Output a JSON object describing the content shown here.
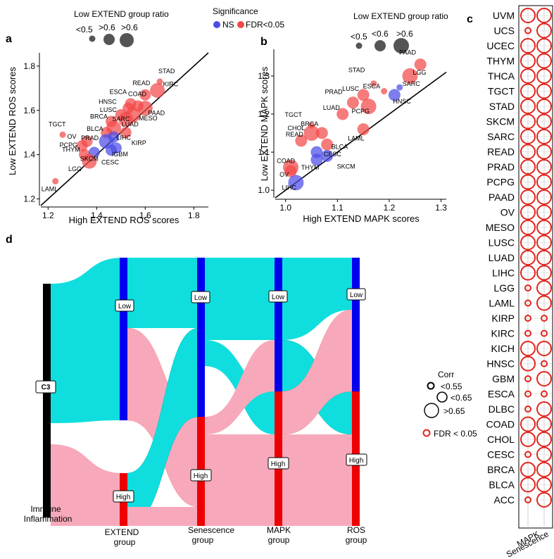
{
  "colors": {
    "red": "#f24848",
    "blue": "#4c4ce8",
    "teal": "#10dede",
    "pink": "#f7a9bb",
    "ring": "#e0241c"
  },
  "panel_labels": {
    "a": "a",
    "b": "b",
    "c": "c",
    "d": "d"
  },
  "legend_top": {
    "size_title": "Low EXTEND group ratio",
    "size_entries": [
      "<0.5",
      ">0.6",
      ">0.6"
    ],
    "sig_title": "Significance",
    "sig_ns": "NS",
    "sig_fdr": "FDR<0.05"
  },
  "legend_b": {
    "size_title": "Low EXTEND group ratio",
    "size_entries": [
      "<0.5",
      "<0.6",
      ">0.6"
    ]
  },
  "legend_c": {
    "corr_title": "Corr",
    "corr_entries": [
      "<0.55",
      "<0.65",
      ">0.65"
    ],
    "fdr_label": "FDR < 0.05"
  },
  "chart_data": [
    {
      "id": "a",
      "type": "scatter",
      "xlabel": "High EXTEND ROS scores",
      "ylabel": "Low EXTEND ROS scores",
      "xlim": [
        1.17,
        1.86
      ],
      "ylim": [
        1.17,
        1.86
      ],
      "xticks": [
        "1.2",
        "1.4",
        "1.6",
        "1.8"
      ],
      "yticks": [
        "1.2",
        "1.4",
        "1.6",
        "1.8"
      ],
      "diagonal": true,
      "points": [
        {
          "label": "STAD",
          "x": 1.66,
          "y": 1.73,
          "size": 1,
          "sig": "FDR"
        },
        {
          "label": "KIRC",
          "x": 1.65,
          "y": 1.69,
          "size": 3,
          "sig": "FDR"
        },
        {
          "label": "READ",
          "x": 1.6,
          "y": 1.67,
          "size": 2,
          "sig": "FDR"
        },
        {
          "label": "ESCA",
          "x": 1.54,
          "y": 1.63,
          "size": 2,
          "sig": "FDR"
        },
        {
          "label": "COAD",
          "x": 1.57,
          "y": 1.62,
          "size": 2,
          "sig": "FDR"
        },
        {
          "label": "HNSC",
          "x": 1.53,
          "y": 1.61,
          "size": 2,
          "sig": "FDR"
        },
        {
          "label": "PAAD",
          "x": 1.6,
          "y": 1.61,
          "size": 3,
          "sig": "FDR"
        },
        {
          "label": "LUSC",
          "x": 1.5,
          "y": 1.58,
          "size": 2,
          "sig": "FDR"
        },
        {
          "label": "MESO",
          "x": 1.55,
          "y": 1.58,
          "size": 3,
          "sig": "FDR"
        },
        {
          "label": "LUAD",
          "x": 1.52,
          "y": 1.56,
          "size": 3,
          "sig": "FDR"
        },
        {
          "label": "BRCA",
          "x": 1.46,
          "y": 1.55,
          "size": 2,
          "sig": "FDR"
        },
        {
          "label": "SARC",
          "x": 1.47,
          "y": 1.52,
          "size": 3,
          "sig": "FDR"
        },
        {
          "label": "BLCA",
          "x": 1.44,
          "y": 1.5,
          "size": 2,
          "sig": "FDR"
        },
        {
          "label": "KIRP",
          "x": 1.52,
          "y": 1.5,
          "size": 2,
          "sig": "FDR"
        },
        {
          "label": "LIHC",
          "x": 1.47,
          "y": 1.48,
          "size": 2,
          "sig": "NS"
        },
        {
          "label": "PRAD",
          "x": 1.44,
          "y": 1.46,
          "size": 3,
          "sig": "NS"
        },
        {
          "label": "OV",
          "x": 1.36,
          "y": 1.46,
          "size": 2,
          "sig": "FDR"
        },
        {
          "label": "TGCT",
          "x": 1.26,
          "y": 1.49,
          "size": 1,
          "sig": "FDR"
        },
        {
          "label": "PCPG",
          "x": 1.34,
          "y": 1.44,
          "size": 2,
          "sig": "FDR"
        },
        {
          "label": "IGBM",
          "x": 1.48,
          "y": 1.43,
          "size": 2,
          "sig": "NS"
        },
        {
          "label": "THYM",
          "x": 1.35,
          "y": 1.4,
          "size": 2,
          "sig": "FDR"
        },
        {
          "label": "SKCM",
          "x": 1.39,
          "y": 1.41,
          "size": 2,
          "sig": "NS"
        },
        {
          "label": "CESC",
          "x": 1.46,
          "y": 1.42,
          "size": 2,
          "sig": "NS"
        },
        {
          "label": "LGG",
          "x": 1.37,
          "y": 1.37,
          "size": 3,
          "sig": "FDR"
        },
        {
          "label": "LAML",
          "x": 1.23,
          "y": 1.28,
          "size": 1,
          "sig": "FDR"
        }
      ]
    },
    {
      "id": "b",
      "type": "scatter",
      "xlabel": "High EXTEND MAPK scores",
      "ylabel": "Low EXTEND MAPK scores",
      "xlim": [
        0.98,
        1.31
      ],
      "ylim": [
        0.98,
        1.37
      ],
      "xticks": [
        "1.0",
        "1.1",
        "1.2",
        "1.3"
      ],
      "yticks": [
        "1.0",
        "1.1",
        "1.2",
        "1.3"
      ],
      "diagonal": true,
      "points": [
        {
          "label": "PAAD",
          "x": 1.26,
          "y": 1.33,
          "size": 2,
          "sig": "FDR"
        },
        {
          "label": "LGG",
          "x": 1.24,
          "y": 1.3,
          "size": 3,
          "sig": "FDR"
        },
        {
          "label": "STAD",
          "x": 1.17,
          "y": 1.28,
          "size": 1,
          "sig": "FDR"
        },
        {
          "label": "SARC",
          "x": 1.22,
          "y": 1.27,
          "size": 1,
          "sig": "NS"
        },
        {
          "label": "ESCA",
          "x": 1.19,
          "y": 1.26,
          "size": 1,
          "sig": "FDR"
        },
        {
          "label": "HNSC",
          "x": 1.21,
          "y": 1.25,
          "size": 2,
          "sig": "NS"
        },
        {
          "label": "LUSC",
          "x": 1.15,
          "y": 1.25,
          "size": 2,
          "sig": "FDR"
        },
        {
          "label": "PRAD",
          "x": 1.13,
          "y": 1.23,
          "size": 2,
          "sig": "FDR"
        },
        {
          "label": "PCPG",
          "x": 1.16,
          "y": 1.22,
          "size": 3,
          "sig": "FDR"
        },
        {
          "label": "LUAD",
          "x": 1.11,
          "y": 1.2,
          "size": 2,
          "sig": "FDR"
        },
        {
          "label": "TGCT",
          "x": 1.05,
          "y": 1.17,
          "size": 1,
          "sig": "FDR"
        },
        {
          "label": "LAML",
          "x": 1.15,
          "y": 1.16,
          "size": 2,
          "sig": "FDR"
        },
        {
          "label": "BRCA",
          "x": 1.07,
          "y": 1.15,
          "size": 2,
          "sig": "FDR"
        },
        {
          "label": "CHOL",
          "x": 1.05,
          "y": 1.15,
          "size": 3,
          "sig": "FDR"
        },
        {
          "label": "READ",
          "x": 1.03,
          "y": 1.13,
          "size": 2,
          "sig": "FDR"
        },
        {
          "label": "BLCA",
          "x": 1.08,
          "y": 1.12,
          "size": 2,
          "sig": "FDR"
        },
        {
          "label": "COAD",
          "x": 1.01,
          "y": 1.06,
          "size": 3,
          "sig": "FDR"
        },
        {
          "label": "CESC",
          "x": 1.06,
          "y": 1.1,
          "size": 2,
          "sig": "NS"
        },
        {
          "label": "THYM",
          "x": 1.06,
          "y": 1.08,
          "size": 2,
          "sig": "NS"
        },
        {
          "label": "SKCM",
          "x": 1.08,
          "y": 1.09,
          "size": 2,
          "sig": "NS"
        },
        {
          "label": "OV",
          "x": 1.01,
          "y": 1.05,
          "size": 2,
          "sig": "FDR"
        },
        {
          "label": "LIHC",
          "x": 1.02,
          "y": 1.02,
          "size": 3,
          "sig": "NS"
        }
      ]
    },
    {
      "id": "c",
      "type": "scatter",
      "x_categories": [
        "MAPK",
        "Senescence"
      ],
      "rows": [
        "UVM",
        "UCS",
        "UCEC",
        "THYM",
        "THCA",
        "TGCT",
        "STAD",
        "SKCM",
        "SARC",
        "READ",
        "PRAD",
        "PCPG",
        "PAAD",
        "OV",
        "MESO",
        "LUSC",
        "LUAD",
        "LIHC",
        "LGG",
        "LAML",
        "KIRP",
        "KIRC",
        "KICH",
        "HNSC",
        "GBM",
        "ESCA",
        "DLBC",
        "COAD",
        "CHOL",
        "CESC",
        "BRCA",
        "BLCA",
        "ACC"
      ],
      "corr_mapk": [
        3,
        1,
        3,
        3,
        3,
        3,
        3,
        3,
        3,
        3,
        3,
        3,
        3,
        3,
        3,
        3,
        3,
        3,
        1,
        1,
        1,
        1,
        3,
        3,
        1,
        1,
        1,
        3,
        3,
        1,
        3,
        3,
        1
      ],
      "corr_senescence": [
        3,
        3,
        3,
        3,
        3,
        3,
        3,
        3,
        3,
        3,
        3,
        3,
        3,
        3,
        3,
        3,
        3,
        3,
        3,
        3,
        1,
        1,
        3,
        1,
        3,
        1,
        3,
        3,
        3,
        3,
        3,
        3,
        3
      ],
      "size_legend": "Corr: 1 = <0.55, 2 = <0.65, 3 = >0.65; all FDR < 0.05"
    },
    {
      "id": "d",
      "type": "table",
      "description_values": "Sankey diagram of group flows",
      "columns": [
        {
          "name": "Immune\nInflammation",
          "nodes": [
            {
              "label": "C3",
              "share": 1.0
            }
          ]
        },
        {
          "name": "EXTEND\ngroup",
          "nodes": [
            {
              "label": "Low",
              "share": 0.62
            },
            {
              "label": "High",
              "share": 0.18
            }
          ]
        },
        {
          "name": "Senescence\ngroup",
          "nodes": [
            {
              "label": "Low",
              "share": 0.58
            },
            {
              "label": "High",
              "share": 0.42
            }
          ]
        },
        {
          "name": "MAPK\ngroup",
          "nodes": [
            {
              "label": "Low",
              "share": 0.5
            },
            {
              "label": "High",
              "share": 0.5
            }
          ]
        },
        {
          "name": "ROS\ngroup",
          "nodes": [
            {
              "label": "Low",
              "share": 0.5
            },
            {
              "label": "High",
              "share": 0.5
            }
          ]
        }
      ]
    }
  ],
  "panel_d_text": {
    "c3": "C3",
    "col1": [
      "Immune",
      "Inflammation"
    ],
    "col2": [
      "EXTEND",
      "group"
    ],
    "col3": [
      "Senescence",
      "group"
    ],
    "col4": [
      "MAPK",
      "group"
    ],
    "col5": [
      "ROS",
      "group"
    ],
    "low": "Low",
    "high": "High"
  }
}
